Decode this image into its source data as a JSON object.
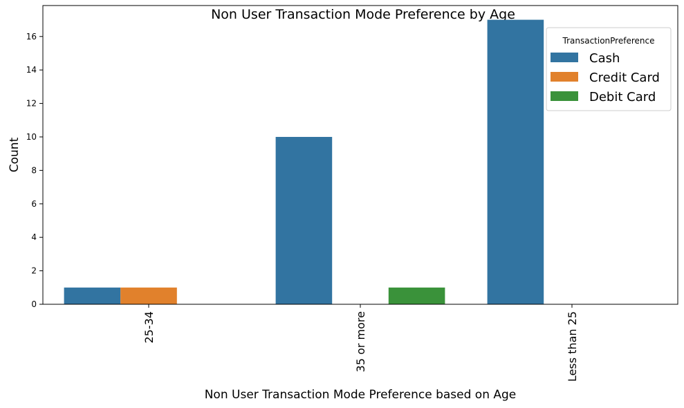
{
  "chart_data": {
    "type": "bar",
    "title": "Non User Transaction Mode Preference by Age",
    "xlabel": "Non User Transaction Mode Preference based on Age",
    "ylabel": "Count",
    "categories": [
      "25-34",
      "35 or more",
      "Less than 25"
    ],
    "series": [
      {
        "name": "Cash",
        "color": "#3274a1",
        "values": [
          1,
          10,
          17
        ]
      },
      {
        "name": "Credit Card",
        "color": "#e1812c",
        "values": [
          1,
          0,
          0
        ]
      },
      {
        "name": "Debit Card",
        "color": "#3a923a",
        "values": [
          0,
          1,
          0
        ]
      }
    ],
    "ylim": [
      0,
      17.85
    ],
    "yticks": [
      0,
      2,
      4,
      6,
      8,
      10,
      12,
      14,
      16
    ],
    "legend": {
      "title": "TransactionPreference",
      "position": "top-right"
    },
    "grid": false
  }
}
